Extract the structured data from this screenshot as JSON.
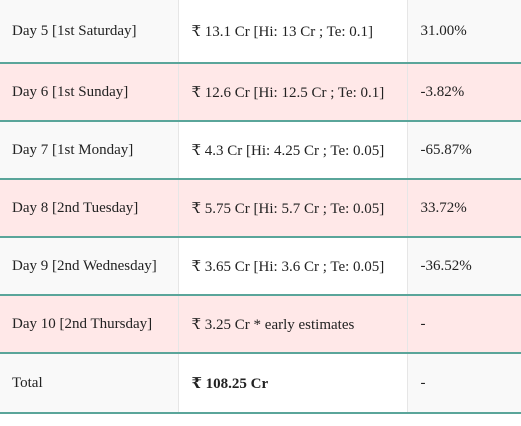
{
  "table": {
    "rows": [
      {
        "day": "Day 5 [1st Saturday]",
        "collection": "₹ 13.1 Cr [Hi: 13 Cr ; Te: 0.1]",
        "change": "31.00%"
      },
      {
        "day": "Day 6 [1st Sunday]",
        "collection": "₹ 12.6 Cr [Hi: 12.5 Cr ; Te: 0.1]",
        "change": "-3.82%"
      },
      {
        "day": "Day 7 [1st Monday]",
        "collection": "₹ 4.3 Cr [Hi: 4.25 Cr ; Te: 0.05]",
        "change": "-65.87%"
      },
      {
        "day": "Day 8 [2nd Tuesday]",
        "collection": "₹ 5.75 Cr [Hi: 5.7 Cr ; Te: 0.05]",
        "change": "33.72%"
      },
      {
        "day": "Day 9 [2nd Wednesday]",
        "collection": "₹ 3.65 Cr [Hi: 3.6 Cr ; Te: 0.05]",
        "change": "-36.52%"
      },
      {
        "day": "Day 10 [2nd Thursday]",
        "collection": "₹ 3.25 Cr * early estimates",
        "change": "-"
      }
    ],
    "total": {
      "label": "Total",
      "collection": "₹ 108.25 Cr",
      "change": "-"
    }
  },
  "colors": {
    "row_alt_pink": "#ffe8e8",
    "row_light": "#f9f9f9",
    "divider_teal": "#5aa59a"
  }
}
